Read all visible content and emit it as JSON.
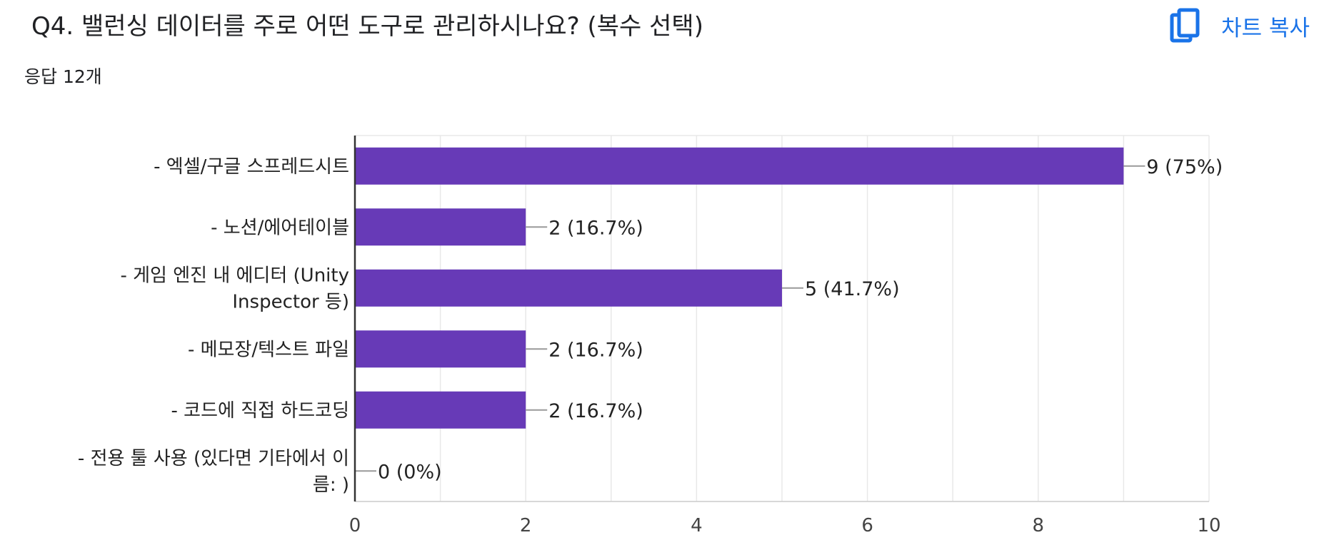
{
  "header": {
    "title": "Q4. 밸런싱 데이터를 주로 어떤 도구로 관리하시나요? (복수 선택)",
    "response_count": "응답 12개",
    "copy_label": "차트 복사",
    "copy_icon": "copy-icon"
  },
  "colors": {
    "bar": "#673ab7",
    "accent": "#1a73e8",
    "grid": "#e8e8e8",
    "axis": "#333333"
  },
  "chart_data": {
    "type": "bar",
    "orientation": "horizontal",
    "categories": [
      [
        "- 엑셀/구글 스프레드시트"
      ],
      [
        "- 노션/에어테이블"
      ],
      [
        "- 게임 엔진 내 에디터 (Unity",
        "Inspector 등)"
      ],
      [
        "- 메모장/텍스트 파일"
      ],
      [
        "- 코드에 직접 하드코딩"
      ],
      [
        "- 전용 툴 사용 (있다면 기타에서 이",
        "름: )"
      ]
    ],
    "values": [
      9,
      2,
      5,
      2,
      2,
      0
    ],
    "data_labels": [
      "9 (75%)",
      "2 (16.7%)",
      "5 (41.7%)",
      "2 (16.7%)",
      "2 (16.7%)",
      "0 (0%)"
    ],
    "xlim": [
      0,
      10
    ],
    "xticks": [
      0,
      2,
      4,
      6,
      8,
      10
    ],
    "grid": true
  }
}
